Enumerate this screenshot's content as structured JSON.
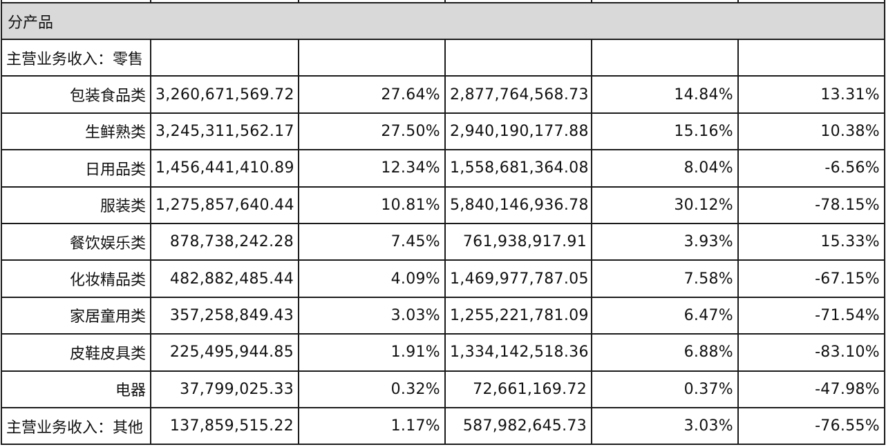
{
  "section_title": "分产品",
  "rows": [
    {
      "label": "主营业务收入：零售",
      "align": "left",
      "values": [
        "",
        "",
        "",
        "",
        ""
      ]
    },
    {
      "label": "包装食品类",
      "align": "right",
      "values": [
        "3,260,671,569.72",
        "27.64%",
        "2,877,764,568.73",
        "14.84%",
        "13.31%"
      ]
    },
    {
      "label": "生鲜熟类",
      "align": "right",
      "values": [
        "3,245,311,562.17",
        "27.50%",
        "2,940,190,177.88",
        "15.16%",
        "10.38%"
      ]
    },
    {
      "label": "日用品类",
      "align": "right",
      "values": [
        "1,456,441,410.89",
        "12.34%",
        "1,558,681,364.08",
        "8.04%",
        "-6.56%"
      ]
    },
    {
      "label": "服装类",
      "align": "right",
      "values": [
        "1,275,857,640.44",
        "10.81%",
        "5,840,146,936.78",
        "30.12%",
        "-78.15%"
      ]
    },
    {
      "label": "餐饮娱乐类",
      "align": "right",
      "values": [
        "878,738,242.28",
        "7.45%",
        "761,938,917.91",
        "3.93%",
        "15.33%"
      ]
    },
    {
      "label": "化妆精品类",
      "align": "right",
      "values": [
        "482,882,485.44",
        "4.09%",
        "1,469,977,787.05",
        "7.58%",
        "-67.15%"
      ]
    },
    {
      "label": "家居童用类",
      "align": "right",
      "values": [
        "357,258,849.43",
        "3.03%",
        "1,255,221,781.09",
        "6.47%",
        "-71.54%"
      ]
    },
    {
      "label": "皮鞋皮具类",
      "align": "right",
      "values": [
        "225,495,944.85",
        "1.91%",
        "1,334,142,518.36",
        "6.88%",
        "-83.10%"
      ]
    },
    {
      "label": "电器",
      "align": "right",
      "values": [
        "37,799,025.33",
        "0.32%",
        "72,661,169.72",
        "0.37%",
        "-47.98%"
      ]
    },
    {
      "label": "主营业务收入：其他",
      "align": "left",
      "values": [
        "137,859,515.22",
        "1.17%",
        "587,982,645.73",
        "3.03%",
        "-76.55%"
      ]
    }
  ]
}
